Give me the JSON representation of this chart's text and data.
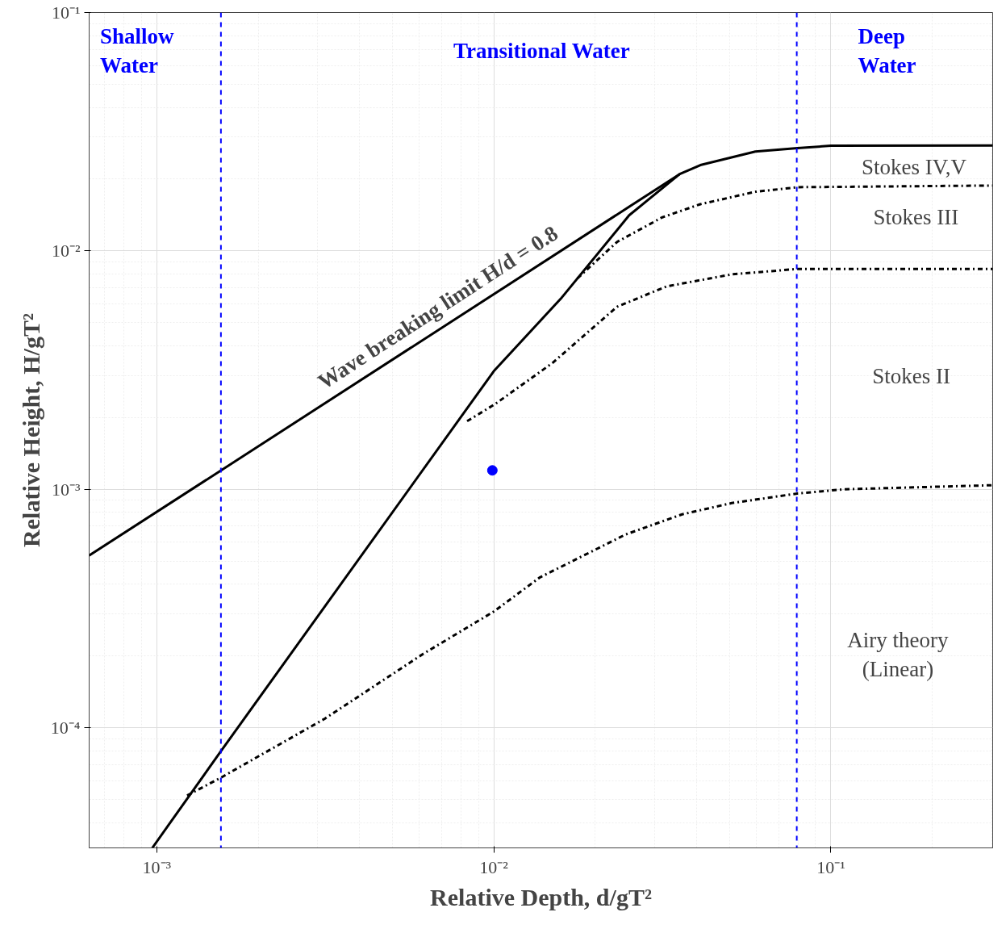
{
  "chart_data": {
    "type": "line",
    "xlabel": "Relative Depth, d/gT²",
    "ylabel": "Relative Height, H/gT²",
    "log": "xy",
    "xlim": [
      0.00063,
      0.302
    ],
    "ylim": [
      3.13e-05,
      0.1
    ],
    "xticks": [
      {
        "value": 0.001,
        "label": "10⁻³"
      },
      {
        "value": 0.01,
        "label": "10⁻²"
      },
      {
        "value": 0.1,
        "label": "10⁻¹"
      }
    ],
    "yticks": [
      {
        "value": 0.0001,
        "label": "10⁻⁴"
      },
      {
        "value": 0.001,
        "label": "10⁻³"
      },
      {
        "value": 0.01,
        "label": "10⁻²"
      },
      {
        "value": 0.1,
        "label": "10⁻¹"
      }
    ],
    "grid": true,
    "marker": "none",
    "series": [
      {
        "color": "#000000",
        "line_style": "solid",
        "x": [
          0.00063,
          0.0356,
          0.041,
          0.0597,
          0.0796,
          0.1,
          0.302
        ],
        "values": [
          0.000527,
          0.021,
          0.0229,
          0.0261,
          0.027,
          0.0276,
          0.0277
        ]
      },
      {
        "color": "#000000",
        "line_style": "solid",
        "x": [
          0.00097,
          0.00155,
          0.01,
          0.0158,
          0.0252,
          0.0356
        ],
        "values": [
          3.13e-05,
          7.97e-05,
          0.00313,
          0.0063,
          0.0141,
          0.021
        ]
      },
      {
        "color": "#000000",
        "line_style": "dashdot",
        "x": [
          0.0177,
          0.0232,
          0.0315,
          0.041,
          0.0597,
          0.0796,
          0.302
        ],
        "values": [
          0.00767,
          0.0109,
          0.0138,
          0.0157,
          0.0177,
          0.0185,
          0.0188
        ]
      },
      {
        "color": "#000000",
        "line_style": "dashdot",
        "x": [
          0.00833,
          0.0101,
          0.0149,
          0.0232,
          0.0326,
          0.0508,
          0.0796,
          0.302
        ],
        "values": [
          0.00193,
          0.00228,
          0.00338,
          0.00583,
          0.0071,
          0.00797,
          0.0084,
          0.0084
        ]
      },
      {
        "color": "#000000",
        "line_style": "dashdot",
        "x": [
          0.00123,
          0.00155,
          0.00315,
          0.00614,
          0.01,
          0.0137,
          0.0246,
          0.0362,
          0.0508,
          0.0796,
          0.11,
          0.302
        ],
        "values": [
          5.19e-05,
          6.17e-05,
          0.000109,
          0.000203,
          0.000307,
          0.000427,
          0.000646,
          0.000785,
          0.000875,
          0.00096,
          0.001,
          0.00104
        ]
      },
      {
        "type": "scatter",
        "marker": "circle",
        "color": "#0000ff",
        "x": [
          0.0099
        ],
        "values": [
          0.0012
        ]
      }
    ],
    "ref_lines": [
      {
        "axis": "x",
        "value": 0.00155,
        "color": "#0000ff",
        "line_style": "dashed"
      },
      {
        "axis": "x",
        "value": 0.0792,
        "color": "#0000ff",
        "line_style": "dashed"
      }
    ],
    "annotations": [
      "Shallow\nWater",
      "Transitional Water",
      "Deep\nWater",
      "Wave breaking limit H/d = 0.8",
      "Stokes IV,V",
      "Stokes III",
      "Stokes II",
      "Airy theory\n(Linear)"
    ]
  }
}
